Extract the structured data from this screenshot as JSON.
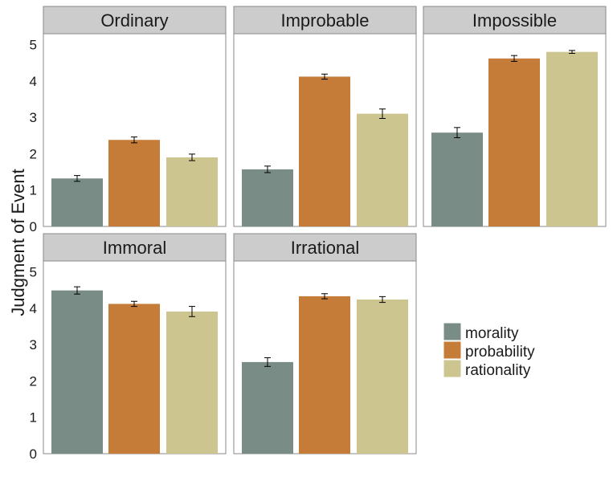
{
  "chart_data": {
    "type": "bar",
    "ylabel": "Judgment of Event",
    "ylim": [
      0,
      5.3
    ],
    "yticks": [
      0,
      1,
      2,
      3,
      4,
      5
    ],
    "grid": false,
    "legend_position": "right",
    "series": [
      {
        "name": "morality",
        "color": "#7a8c86"
      },
      {
        "name": "probability",
        "color": "#c47c38"
      },
      {
        "name": "rationality",
        "color": "#cdc590"
      }
    ],
    "panels": [
      {
        "title": "Ordinary",
        "values": [
          1.32,
          2.38,
          1.9
        ],
        "errors": [
          0.08,
          0.08,
          0.09
        ]
      },
      {
        "title": "Improbable",
        "values": [
          1.57,
          4.12,
          3.1
        ],
        "errors": [
          0.09,
          0.07,
          0.13
        ]
      },
      {
        "title": "Impossible",
        "values": [
          2.58,
          4.62,
          4.8
        ],
        "errors": [
          0.14,
          0.08,
          0.04
        ]
      },
      {
        "title": "Immoral",
        "values": [
          4.49,
          4.12,
          3.91
        ],
        "errors": [
          0.1,
          0.07,
          0.14
        ]
      },
      {
        "title": "Irrational",
        "values": [
          2.52,
          4.33,
          4.24
        ],
        "errors": [
          0.12,
          0.07,
          0.08
        ]
      }
    ]
  }
}
